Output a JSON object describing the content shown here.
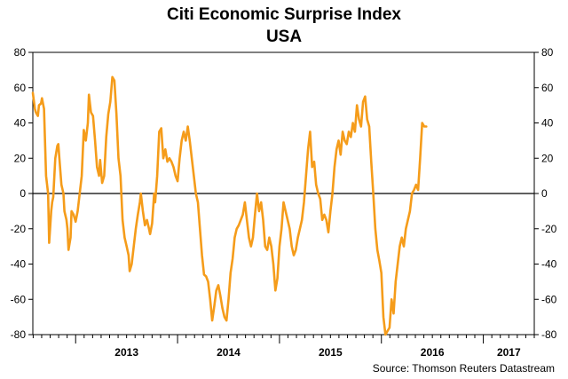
{
  "chart_data": {
    "type": "line",
    "title": "Citi Economic Surprise Index",
    "subtitle": "USA",
    "source": "Source: Thomson Reuters Datastream",
    "series": [
      {
        "name": "",
        "color": "#f59c1a",
        "values": [
          [
            2012.58,
            57
          ],
          [
            2012.6,
            48
          ],
          [
            2012.61,
            46
          ],
          [
            2012.63,
            44
          ],
          [
            2012.64,
            50
          ],
          [
            2012.66,
            51
          ],
          [
            2012.67,
            54
          ],
          [
            2012.69,
            48
          ],
          [
            2012.71,
            10
          ],
          [
            2012.73,
            0
          ],
          [
            2012.74,
            -28
          ],
          [
            2012.76,
            -10
          ],
          [
            2012.77,
            -5
          ],
          [
            2012.78,
            -2
          ],
          [
            2012.8,
            20
          ],
          [
            2012.82,
            27
          ],
          [
            2012.83,
            28
          ],
          [
            2012.84,
            20
          ],
          [
            2012.86,
            5
          ],
          [
            2012.88,
            0
          ],
          [
            2012.89,
            -10
          ],
          [
            2012.91,
            -15
          ],
          [
            2012.92,
            -20
          ],
          [
            2012.93,
            -32
          ],
          [
            2012.95,
            -25
          ],
          [
            2012.96,
            -10
          ],
          [
            2012.98,
            -12
          ],
          [
            2013.0,
            -16
          ],
          [
            2013.02,
            -10
          ],
          [
            2013.04,
            0
          ],
          [
            2013.06,
            10
          ],
          [
            2013.08,
            36
          ],
          [
            2013.1,
            30
          ],
          [
            2013.12,
            40
          ],
          [
            2013.13,
            56
          ],
          [
            2013.15,
            46
          ],
          [
            2013.17,
            44
          ],
          [
            2013.19,
            30
          ],
          [
            2013.21,
            15
          ],
          [
            2013.23,
            10
          ],
          [
            2013.24,
            19
          ],
          [
            2013.26,
            6
          ],
          [
            2013.28,
            10
          ],
          [
            2013.3,
            32
          ],
          [
            2013.32,
            45
          ],
          [
            2013.34,
            52
          ],
          [
            2013.36,
            66
          ],
          [
            2013.38,
            64
          ],
          [
            2013.4,
            45
          ],
          [
            2013.42,
            20
          ],
          [
            2013.44,
            10
          ],
          [
            2013.46,
            -15
          ],
          [
            2013.48,
            -25
          ],
          [
            2013.5,
            -30
          ],
          [
            2013.52,
            -35
          ],
          [
            2013.53,
            -44
          ],
          [
            2013.55,
            -40
          ],
          [
            2013.57,
            -30
          ],
          [
            2013.59,
            -20
          ],
          [
            2013.61,
            -12
          ],
          [
            2013.63,
            -5
          ],
          [
            2013.64,
            0
          ],
          [
            2013.66,
            -10
          ],
          [
            2013.68,
            -18
          ],
          [
            2013.7,
            -15
          ],
          [
            2013.72,
            -20
          ],
          [
            2013.73,
            -23
          ],
          [
            2013.75,
            -17
          ],
          [
            2013.77,
            0
          ],
          [
            2013.78,
            -5
          ],
          [
            2013.8,
            10
          ],
          [
            2013.82,
            35
          ],
          [
            2013.84,
            37
          ],
          [
            2013.86,
            20
          ],
          [
            2013.88,
            25
          ],
          [
            2013.9,
            18
          ],
          [
            2013.92,
            20
          ],
          [
            2013.94,
            18
          ],
          [
            2013.96,
            15
          ],
          [
            2013.98,
            10
          ],
          [
            2014.0,
            7
          ],
          [
            2014.02,
            20
          ],
          [
            2014.04,
            30
          ],
          [
            2014.06,
            35
          ],
          [
            2014.08,
            30
          ],
          [
            2014.1,
            38
          ],
          [
            2014.12,
            30
          ],
          [
            2014.14,
            20
          ],
          [
            2014.16,
            10
          ],
          [
            2014.18,
            0
          ],
          [
            2014.2,
            -5
          ],
          [
            2014.22,
            -20
          ],
          [
            2014.24,
            -35
          ],
          [
            2014.26,
            -46
          ],
          [
            2014.28,
            -47
          ],
          [
            2014.3,
            -50
          ],
          [
            2014.32,
            -60
          ],
          [
            2014.34,
            -72
          ],
          [
            2014.36,
            -64
          ],
          [
            2014.38,
            -55
          ],
          [
            2014.4,
            -52
          ],
          [
            2014.42,
            -58
          ],
          [
            2014.44,
            -65
          ],
          [
            2014.46,
            -70
          ],
          [
            2014.48,
            -72
          ],
          [
            2014.5,
            -60
          ],
          [
            2014.52,
            -45
          ],
          [
            2014.54,
            -37
          ],
          [
            2014.56,
            -25
          ],
          [
            2014.58,
            -20
          ],
          [
            2014.6,
            -18
          ],
          [
            2014.62,
            -15
          ],
          [
            2014.64,
            -12
          ],
          [
            2014.66,
            -5
          ],
          [
            2014.68,
            -15
          ],
          [
            2014.7,
            -25
          ],
          [
            2014.72,
            -30
          ],
          [
            2014.74,
            -25
          ],
          [
            2014.76,
            -12
          ],
          [
            2014.78,
            0
          ],
          [
            2014.8,
            -10
          ],
          [
            2014.82,
            -5
          ],
          [
            2014.84,
            -15
          ],
          [
            2014.86,
            -30
          ],
          [
            2014.88,
            -32
          ],
          [
            2014.9,
            -25
          ],
          [
            2014.92,
            -30
          ],
          [
            2014.94,
            -40
          ],
          [
            2014.96,
            -55
          ],
          [
            2014.98,
            -48
          ],
          [
            2015.0,
            -30
          ],
          [
            2015.02,
            -20
          ],
          [
            2015.04,
            -5
          ],
          [
            2015.06,
            -10
          ],
          [
            2015.08,
            -15
          ],
          [
            2015.1,
            -20
          ],
          [
            2015.12,
            -30
          ],
          [
            2015.14,
            -35
          ],
          [
            2015.16,
            -32
          ],
          [
            2015.18,
            -25
          ],
          [
            2015.2,
            -20
          ],
          [
            2015.22,
            -15
          ],
          [
            2015.24,
            -5
          ],
          [
            2015.26,
            10
          ],
          [
            2015.28,
            25
          ],
          [
            2015.3,
            35
          ],
          [
            2015.32,
            15
          ],
          [
            2015.34,
            18
          ],
          [
            2015.36,
            5
          ],
          [
            2015.38,
            0
          ],
          [
            2015.4,
            -3
          ],
          [
            2015.42,
            -15
          ],
          [
            2015.44,
            -12
          ],
          [
            2015.46,
            -15
          ],
          [
            2015.48,
            -22
          ],
          [
            2015.5,
            -10
          ],
          [
            2015.52,
            0
          ],
          [
            2015.54,
            15
          ],
          [
            2015.56,
            25
          ],
          [
            2015.58,
            30
          ],
          [
            2015.6,
            22
          ],
          [
            2015.62,
            35
          ],
          [
            2015.64,
            30
          ],
          [
            2015.66,
            28
          ],
          [
            2015.68,
            35
          ],
          [
            2015.7,
            32
          ],
          [
            2015.72,
            40
          ],
          [
            2015.74,
            35
          ],
          [
            2015.76,
            50
          ],
          [
            2015.78,
            42
          ],
          [
            2015.8,
            38
          ],
          [
            2015.82,
            52
          ],
          [
            2015.84,
            55
          ],
          [
            2015.86,
            42
          ],
          [
            2015.88,
            38
          ],
          [
            2015.9,
            18
          ],
          [
            2015.92,
            0
          ],
          [
            2015.94,
            -20
          ],
          [
            2015.96,
            -32
          ],
          [
            2015.98,
            -38
          ],
          [
            2016.0,
            -45
          ],
          [
            2016.02,
            -70
          ],
          [
            2016.04,
            -80
          ],
          [
            2016.06,
            -78
          ],
          [
            2016.08,
            -76
          ],
          [
            2016.1,
            -60
          ],
          [
            2016.12,
            -68
          ],
          [
            2016.14,
            -50
          ],
          [
            2016.16,
            -40
          ],
          [
            2016.18,
            -30
          ],
          [
            2016.2,
            -25
          ],
          [
            2016.22,
            -30
          ],
          [
            2016.24,
            -20
          ],
          [
            2016.26,
            -15
          ],
          [
            2016.28,
            -10
          ],
          [
            2016.3,
            0
          ],
          [
            2016.32,
            2
          ],
          [
            2016.34,
            5
          ],
          [
            2016.36,
            2
          ],
          [
            2016.38,
            20
          ],
          [
            2016.4,
            40
          ],
          [
            2016.42,
            38
          ],
          [
            2016.44,
            38
          ]
        ]
      }
    ],
    "x_ticks": [
      "2013",
      "2014",
      "2015",
      "2016",
      "2017"
    ],
    "yticks": [
      -80,
      -60,
      -40,
      -20,
      0,
      20,
      40,
      60,
      80
    ],
    "ylim": [
      -80,
      80
    ],
    "xlim": [
      2012.58,
      2017.5
    ],
    "reference_line": 0
  }
}
